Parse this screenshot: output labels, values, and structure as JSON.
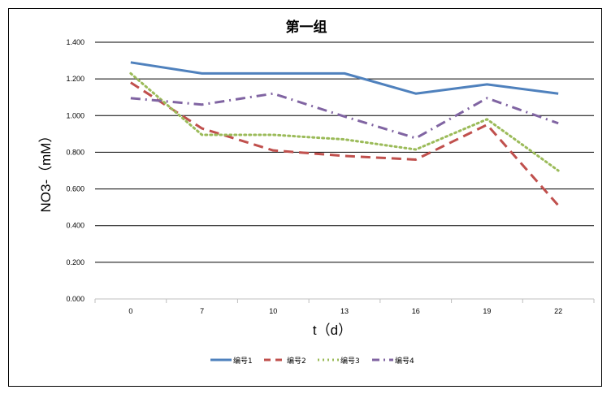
{
  "chart_data": {
    "type": "line",
    "title": "第一组",
    "xlabel": "t（d）",
    "ylabel": "NO3-（mM）",
    "categories": [
      "0",
      "7",
      "10",
      "13",
      "16",
      "19",
      "22"
    ],
    "ylim": [
      0,
      1.4
    ],
    "yticks": [
      "0.000",
      "0.200",
      "0.400",
      "0.600",
      "0.800",
      "1.000",
      "1.200",
      "1.400"
    ],
    "grid": true,
    "legend_position": "bottom",
    "series": [
      {
        "name": "编号1",
        "color": "#4f81bd",
        "dash": "",
        "values": [
          1.29,
          1.23,
          1.23,
          1.23,
          1.12,
          1.17,
          1.12
        ]
      },
      {
        "name": "编号2",
        "color": "#c0504d",
        "dash": "12,7",
        "values": [
          1.18,
          0.93,
          0.81,
          0.78,
          0.76,
          0.95,
          0.51
        ]
      },
      {
        "name": "编号3",
        "color": "#9bbb59",
        "dash": "2,4",
        "values": [
          1.23,
          0.895,
          0.895,
          0.87,
          0.815,
          0.98,
          0.7
        ]
      },
      {
        "name": "编号4",
        "color": "#8064a2",
        "dash": "12,6,2,6",
        "values": [
          1.095,
          1.06,
          1.12,
          0.995,
          0.877,
          1.095,
          0.958
        ]
      }
    ]
  }
}
